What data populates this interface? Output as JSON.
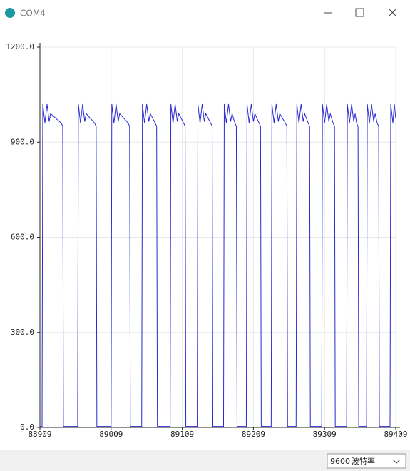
{
  "window": {
    "title": "COM4",
    "baud_rate": "9600",
    "baud_label": "波特率"
  },
  "chart_data": {
    "type": "line",
    "x": [
      88909,
      88912,
      88913,
      88916,
      88919,
      88922,
      88924,
      88939,
      88941,
      88942,
      88962,
      88963,
      88966,
      88969,
      88972,
      88974,
      88986,
      88988,
      88989,
      89009,
      89010,
      89013,
      89016,
      89019,
      89021,
      89033,
      89035,
      89036,
      89052,
      89053,
      89056,
      89059,
      89062,
      89064,
      89071,
      89073,
      89074,
      89092,
      89093,
      89096,
      89099,
      89102,
      89104,
      89111,
      89113,
      89114,
      89130,
      89131,
      89134,
      89137,
      89140,
      89142,
      89149,
      89151,
      89152,
      89167,
      89168,
      89171,
      89174,
      89177,
      89179,
      89183,
      89185,
      89186,
      89199,
      89200,
      89203,
      89206,
      89209,
      89211,
      89217,
      89219,
      89220,
      89234,
      89235,
      89238,
      89241,
      89244,
      89246,
      89254,
      89256,
      89257,
      89269,
      89270,
      89273,
      89276,
      89279,
      89281,
      89286,
      89288,
      89289,
      89305,
      89306,
      89309,
      89312,
      89315,
      89317,
      89321,
      89323,
      89324,
      89340,
      89341,
      89344,
      89347,
      89350,
      89352,
      89354,
      89356,
      89357,
      89368,
      89369,
      89372,
      89375,
      89378,
      89380,
      89383,
      89385,
      89386,
      89401,
      89402,
      89405,
      89407,
      89409
    ],
    "values": [
      3,
      3,
      1020,
      960,
      1020,
      965,
      990,
      960,
      950,
      3,
      3,
      1020,
      960,
      1020,
      965,
      990,
      960,
      950,
      3,
      3,
      1020,
      960,
      1020,
      965,
      990,
      960,
      950,
      3,
      3,
      1020,
      960,
      1020,
      965,
      990,
      960,
      950,
      3,
      3,
      1020,
      960,
      1020,
      965,
      990,
      960,
      950,
      3,
      3,
      1020,
      960,
      1020,
      965,
      990,
      960,
      950,
      3,
      3,
      1020,
      960,
      1020,
      965,
      990,
      960,
      950,
      3,
      3,
      1020,
      960,
      1020,
      965,
      990,
      960,
      950,
      3,
      3,
      1020,
      960,
      1020,
      965,
      990,
      960,
      950,
      3,
      3,
      1020,
      960,
      1020,
      965,
      990,
      960,
      950,
      3,
      3,
      1020,
      960,
      1020,
      965,
      990,
      960,
      950,
      3,
      3,
      1020,
      960,
      1020,
      965,
      990,
      960,
      950,
      3,
      3,
      1020,
      960,
      1020,
      965,
      990,
      960,
      950,
      3,
      3,
      1020,
      960,
      1020,
      975
    ],
    "color": "#2a2ad0",
    "xlim": [
      88909,
      89409
    ],
    "xticks": [
      88909,
      89009,
      89109,
      89209,
      89309,
      89409
    ],
    "ylim": [
      0,
      1200
    ],
    "yticks": [
      {
        "value": 0,
        "label": "0.0"
      },
      {
        "value": 300,
        "label": "300.0"
      },
      {
        "value": 600,
        "label": "600.0"
      },
      {
        "value": 900,
        "label": "900.0"
      },
      {
        "value": 1200,
        "label": "1200.0"
      }
    ],
    "grid": true
  }
}
